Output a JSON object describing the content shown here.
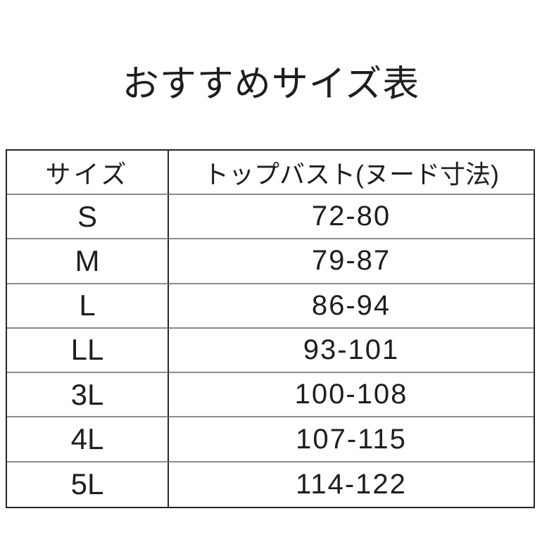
{
  "page": {
    "title": "おすすめサイズ表"
  },
  "theme": {
    "bg": "#ffffff",
    "text": "#1e1e1e",
    "line-dark": "#262626",
    "line-gray": "#8c8c8c"
  },
  "table": {
    "columns": [
      {
        "label": "サイズ"
      },
      {
        "label": "トップバスト(ヌード寸法)"
      }
    ],
    "rows": [
      {
        "size": "S",
        "value": "72-80"
      },
      {
        "size": "M",
        "value": "79-87"
      },
      {
        "size": "L",
        "value": "86-94"
      },
      {
        "size": "LL",
        "value": "93-101"
      },
      {
        "size": "3L",
        "value": "100-108"
      },
      {
        "size": "4L",
        "value": "107-115"
      },
      {
        "size": "5L",
        "value": "114-122"
      }
    ]
  }
}
